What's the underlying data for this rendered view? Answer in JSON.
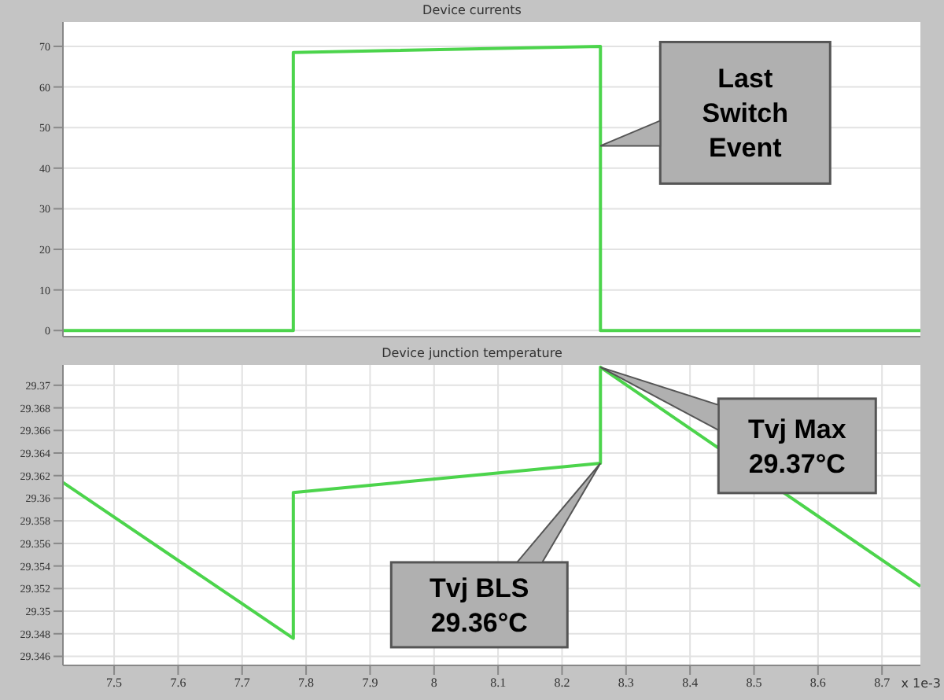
{
  "chart_data": [
    {
      "type": "line",
      "title": "Device currents",
      "x": [
        7.42,
        7.78,
        7.78,
        8.26,
        8.26,
        8.76
      ],
      "xlim": [
        7.42,
        8.76
      ],
      "xticks": [
        7.5,
        7.6,
        7.7,
        7.8,
        7.9,
        8.0,
        8.1,
        8.2,
        8.3,
        8.4,
        8.5,
        8.6,
        8.7
      ],
      "ylim": [
        -1.5,
        76
      ],
      "yticks": [
        0,
        10,
        20,
        30,
        40,
        50,
        60,
        70
      ],
      "tick_labels": "y",
      "grid": true,
      "series": [
        {
          "color": "#4cd44c",
          "values": [
            0,
            0,
            68.5,
            70,
            0,
            0
          ]
        }
      ],
      "annotations": [
        "Last Switch Event"
      ]
    },
    {
      "type": "line",
      "title": "Device junction temperature",
      "xlabel": "x 1e-3",
      "x": [
        7.42,
        7.78,
        7.78,
        8.26,
        8.26,
        8.76
      ],
      "xlim": [
        7.42,
        8.76
      ],
      "xticks": [
        7.5,
        7.6,
        7.7,
        7.8,
        7.9,
        8.0,
        8.1,
        8.2,
        8.3,
        8.4,
        8.5,
        8.6,
        8.7
      ],
      "ylim": [
        29.3452,
        29.3718
      ],
      "yticks": [
        29.346,
        29.348,
        29.35,
        29.352,
        29.354,
        29.356,
        29.358,
        29.36,
        29.362,
        29.364,
        29.366,
        29.368,
        29.37
      ],
      "grid": true,
      "series": [
        {
          "color": "#4cd44c",
          "values": [
            29.3614,
            29.3476,
            29.3605,
            29.3631,
            29.3716,
            29.3522
          ]
        }
      ],
      "annotations": [
        "Tvj Max 29.37°C",
        "Tvj BLS 29.36°C"
      ]
    }
  ]
}
